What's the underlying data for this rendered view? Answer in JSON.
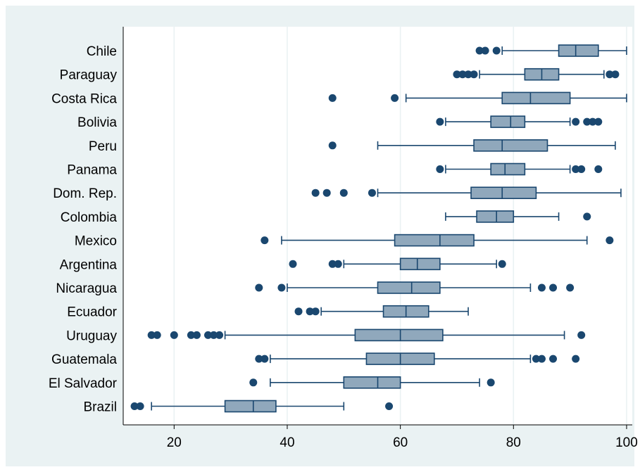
{
  "colors": {
    "outer_bg": "#eaf2f3",
    "plot_bg": "#ffffff",
    "grid": "#eaf2f3",
    "box_fill": "#90a8bc",
    "box_stroke": "#1a476f",
    "outlier": "#1a476f",
    "axis": "#000000"
  },
  "chart_data": {
    "type": "box",
    "orientation": "horizontal",
    "xlim": [
      11,
      101
    ],
    "xticks": [
      20,
      40,
      60,
      80,
      100
    ],
    "grid": true,
    "categories": [
      "Chile",
      "Paraguay",
      "Costa Rica",
      "Bolivia",
      "Peru",
      "Panama",
      "Dom. Rep.",
      "Colombia",
      "Mexico",
      "Argentina",
      "Nicaragua",
      "Ecuador",
      "Uruguay",
      "Guatemala",
      "El Salvador",
      "Brazil"
    ],
    "boxes": [
      {
        "name": "Chile",
        "whisker_low": 78,
        "q1": 88,
        "median": 91,
        "q3": 95,
        "whisker_high": 100,
        "outliers": [
          74,
          75,
          77
        ]
      },
      {
        "name": "Paraguay",
        "whisker_low": 74,
        "q1": 82,
        "median": 85,
        "q3": 88,
        "whisker_high": 96,
        "outliers": [
          70,
          71,
          72,
          73,
          97,
          98
        ]
      },
      {
        "name": "Costa Rica",
        "whisker_low": 61,
        "q1": 78,
        "median": 83,
        "q3": 90,
        "whisker_high": 100,
        "outliers": [
          48,
          59
        ]
      },
      {
        "name": "Bolivia",
        "whisker_low": 68,
        "q1": 76,
        "median": 79.5,
        "q3": 82,
        "whisker_high": 90,
        "outliers": [
          67,
          91,
          93,
          94,
          95
        ]
      },
      {
        "name": "Peru",
        "whisker_low": 56,
        "q1": 73,
        "median": 78,
        "q3": 86,
        "whisker_high": 98,
        "outliers": [
          48
        ]
      },
      {
        "name": "Panama",
        "whisker_low": 68,
        "q1": 76,
        "median": 78.5,
        "q3": 82,
        "whisker_high": 90,
        "outliers": [
          67,
          91,
          92,
          95
        ]
      },
      {
        "name": "Dom. Rep.",
        "whisker_low": 56,
        "q1": 72.5,
        "median": 78,
        "q3": 84,
        "whisker_high": 99,
        "outliers": [
          45,
          47,
          50,
          55
        ]
      },
      {
        "name": "Colombia",
        "whisker_low": 68,
        "q1": 73.5,
        "median": 77,
        "q3": 80,
        "whisker_high": 88,
        "outliers": [
          93
        ]
      },
      {
        "name": "Mexico",
        "whisker_low": 39,
        "q1": 59,
        "median": 67,
        "q3": 73,
        "whisker_high": 93,
        "outliers": [
          36,
          97
        ]
      },
      {
        "name": "Argentina",
        "whisker_low": 50,
        "q1": 60,
        "median": 63,
        "q3": 67,
        "whisker_high": 77,
        "outliers": [
          41,
          48,
          49,
          78
        ]
      },
      {
        "name": "Nicaragua",
        "whisker_low": 40,
        "q1": 56,
        "median": 62,
        "q3": 67,
        "whisker_high": 83,
        "outliers": [
          35,
          39,
          85,
          87,
          90
        ]
      },
      {
        "name": "Ecuador",
        "whisker_low": 46,
        "q1": 57,
        "median": 61,
        "q3": 65,
        "whisker_high": 72,
        "outliers": [
          42,
          44,
          45
        ]
      },
      {
        "name": "Uruguay",
        "whisker_low": 29,
        "q1": 52,
        "median": 60,
        "q3": 67.5,
        "whisker_high": 89,
        "outliers": [
          16,
          17,
          20,
          23,
          24,
          26,
          27,
          28,
          92
        ]
      },
      {
        "name": "Guatemala",
        "whisker_low": 37,
        "q1": 54,
        "median": 60,
        "q3": 66,
        "whisker_high": 83,
        "outliers": [
          35,
          36,
          84,
          85,
          87,
          91
        ]
      },
      {
        "name": "El Salvador",
        "whisker_low": 37,
        "q1": 50,
        "median": 56,
        "q3": 60,
        "whisker_high": 74,
        "outliers": [
          34,
          76
        ]
      },
      {
        "name": "Brazil",
        "whisker_low": 16,
        "q1": 29,
        "median": 34,
        "q3": 38,
        "whisker_high": 50,
        "outliers": [
          13,
          14,
          58
        ]
      }
    ]
  }
}
